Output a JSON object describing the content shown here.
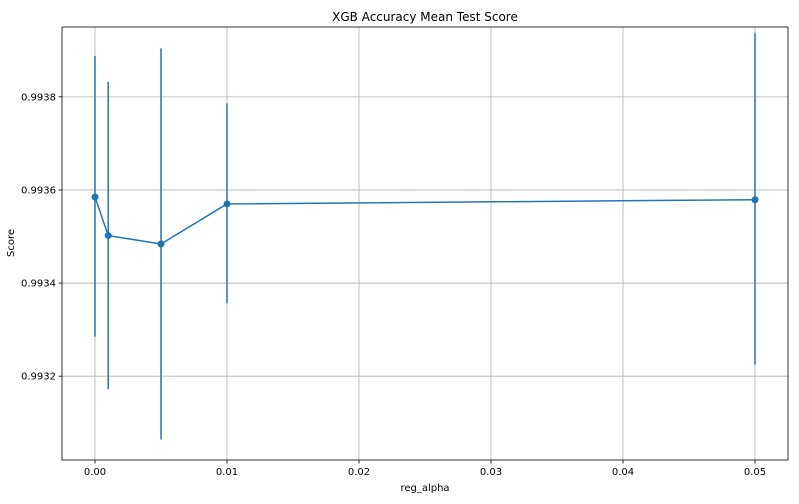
{
  "chart_data": {
    "type": "line",
    "title": "XGB Accuracy Mean Test Score",
    "xlabel": "reg_alpha",
    "ylabel": "Score",
    "xlim": [
      -0.0025,
      0.0525
    ],
    "ylim": [
      0.99302,
      0.99395
    ],
    "grid": true,
    "x": [
      0.0,
      0.001,
      0.005,
      0.01,
      0.05
    ],
    "series": [
      {
        "values": [
          0.993585,
          0.993502,
          0.993484,
          0.99357,
          0.993579
        ],
        "error_low": [
          0.993285,
          0.993172,
          0.993064,
          0.993357,
          0.993225
        ],
        "error_high": [
          0.993888,
          0.993832,
          0.993904,
          0.993786,
          0.993937
        ],
        "color": "#1f77b4"
      }
    ],
    "x_ticks": [
      0.0,
      0.01,
      0.02,
      0.03,
      0.04,
      0.05
    ],
    "x_tick_labels": [
      "0.00",
      "0.01",
      "0.02",
      "0.03",
      "0.04",
      "0.05"
    ],
    "y_ticks": [
      0.9932,
      0.9934,
      0.9936,
      0.9938
    ],
    "y_tick_labels": [
      "0.9932",
      "0.9934",
      "0.9936",
      "0.9938"
    ]
  }
}
